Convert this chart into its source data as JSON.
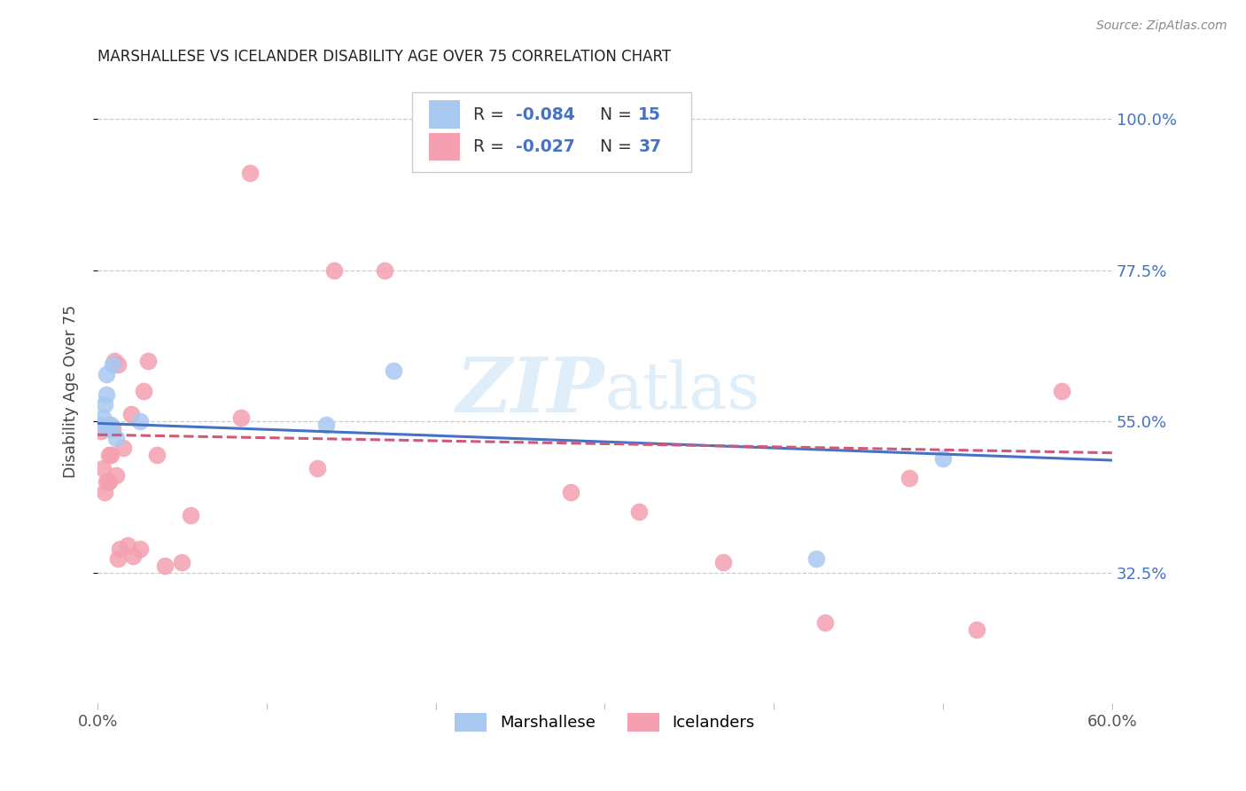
{
  "title": "MARSHALLESE VS ICELANDER DISABILITY AGE OVER 75 CORRELATION CHART",
  "source": "Source: ZipAtlas.com",
  "ylabel": "Disability Age Over 75",
  "xlim": [
    0.0,
    0.6
  ],
  "ylim": [
    0.13,
    1.06
  ],
  "ytick_values": [
    0.325,
    0.55,
    0.775,
    1.0
  ],
  "ytick_labels": [
    "32.5%",
    "55.0%",
    "77.5%",
    "100.0%"
  ],
  "text_blue": "#4472C4",
  "marshallese_color": "#a8c8f0",
  "icelander_color": "#f4a0b0",
  "marshallese_line_color": "#4472C4",
  "icelander_line_color": "#d05878",
  "watermark_color": "#cce4f5",
  "background_color": "#ffffff",
  "grid_color": "#cccccc",
  "marshallese_x": [
    0.002,
    0.003,
    0.004,
    0.005,
    0.005,
    0.006,
    0.007,
    0.008,
    0.009,
    0.011,
    0.025,
    0.135,
    0.175,
    0.425,
    0.5
  ],
  "marshallese_y": [
    0.545,
    0.555,
    0.575,
    0.62,
    0.59,
    0.54,
    0.545,
    0.545,
    0.635,
    0.525,
    0.55,
    0.545,
    0.625,
    0.345,
    0.495
  ],
  "icelander_x": [
    0.002,
    0.003,
    0.004,
    0.005,
    0.006,
    0.007,
    0.007,
    0.008,
    0.009,
    0.01,
    0.011,
    0.012,
    0.012,
    0.013,
    0.015,
    0.018,
    0.02,
    0.021,
    0.025,
    0.027,
    0.03,
    0.035,
    0.04,
    0.05,
    0.055,
    0.085,
    0.09,
    0.13,
    0.14,
    0.17,
    0.28,
    0.32,
    0.37,
    0.43,
    0.48,
    0.52,
    0.57
  ],
  "icelander_y": [
    0.535,
    0.48,
    0.445,
    0.46,
    0.46,
    0.46,
    0.5,
    0.5,
    0.54,
    0.64,
    0.47,
    0.635,
    0.345,
    0.36,
    0.51,
    0.365,
    0.56,
    0.35,
    0.36,
    0.595,
    0.64,
    0.5,
    0.335,
    0.34,
    0.41,
    0.555,
    0.92,
    0.48,
    0.775,
    0.775,
    0.445,
    0.415,
    0.34,
    0.25,
    0.465,
    0.24,
    0.595
  ],
  "marsh_line_x0": 0.0,
  "marsh_line_y0": 0.547,
  "marsh_line_x1": 0.6,
  "marsh_line_y1": 0.492,
  "ice_line_x0": 0.0,
  "ice_line_y0": 0.53,
  "ice_line_x1": 0.6,
  "ice_line_y1": 0.503
}
